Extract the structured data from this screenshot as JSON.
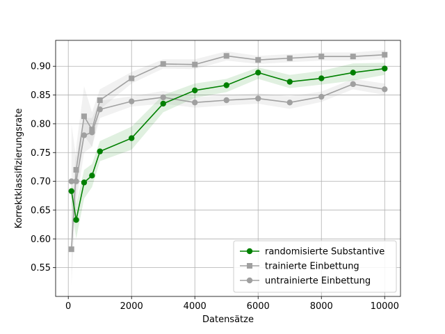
{
  "chart_data": {
    "type": "line",
    "xlabel": "Datensätze",
    "ylabel": "Korrektklassifizierungsrate",
    "xlim": [
      -400,
      10500
    ],
    "ylim": [
      0.5,
      0.945
    ],
    "xticks": [
      0,
      2000,
      4000,
      6000,
      8000,
      10000
    ],
    "xtick_labels": [
      "0",
      "2000",
      "4000",
      "6000",
      "8000",
      "10000"
    ],
    "yticks": [
      0.55,
      0.6,
      0.65,
      0.7,
      0.75,
      0.8,
      0.85,
      0.9
    ],
    "ytick_labels": [
      "0.55",
      "0.60",
      "0.65",
      "0.70",
      "0.75",
      "0.80",
      "0.85",
      "0.90"
    ],
    "grid": true,
    "legend_position": "lower-right",
    "series": [
      {
        "name": "randomisierte Substantive",
        "color": "#008000",
        "marker": "circle",
        "x": [
          100,
          250,
          500,
          750,
          1000,
          2000,
          3000,
          4000,
          5000,
          6000,
          7000,
          8000,
          9000,
          10000
        ],
        "y": [
          0.683,
          0.633,
          0.698,
          0.71,
          0.752,
          0.775,
          0.835,
          0.858,
          0.867,
          0.889,
          0.873,
          0.879,
          0.889,
          0.896
        ],
        "lower": [
          0.66,
          0.6,
          0.67,
          0.69,
          0.735,
          0.755,
          0.82,
          0.845,
          0.855,
          0.878,
          0.862,
          0.868,
          0.875,
          0.885
        ],
        "upper": [
          0.7,
          0.66,
          0.72,
          0.73,
          0.77,
          0.795,
          0.85,
          0.87,
          0.878,
          0.898,
          0.885,
          0.892,
          0.905,
          0.906
        ]
      },
      {
        "name": "trainierte Einbettung",
        "color": "#a0a0a0",
        "marker": "square",
        "x": [
          100,
          250,
          500,
          750,
          1000,
          2000,
          3000,
          4000,
          5000,
          6000,
          7000,
          8000,
          9000,
          10000
        ],
        "y": [
          0.582,
          0.72,
          0.813,
          0.79,
          0.841,
          0.879,
          0.904,
          0.903,
          0.918,
          0.911,
          0.914,
          0.917,
          0.917,
          0.92
        ],
        "lower": [
          0.52,
          0.68,
          0.78,
          0.76,
          0.825,
          0.87,
          0.896,
          0.895,
          0.91,
          0.904,
          0.907,
          0.91,
          0.91,
          0.912
        ],
        "upper": [
          0.64,
          0.76,
          0.865,
          0.82,
          0.86,
          0.89,
          0.912,
          0.912,
          0.926,
          0.918,
          0.921,
          0.924,
          0.924,
          0.928
        ]
      },
      {
        "name": "untrainierte Einbettung",
        "color": "#a0a0a0",
        "marker": "circle",
        "x": [
          100,
          250,
          500,
          750,
          1000,
          2000,
          3000,
          4000,
          5000,
          6000,
          7000,
          8000,
          9000,
          10000
        ],
        "y": [
          0.7,
          0.7,
          0.78,
          0.785,
          0.825,
          0.839,
          0.846,
          0.837,
          0.841,
          0.844,
          0.837,
          0.847,
          0.869,
          0.86
        ],
        "lower": [
          0.6,
          0.66,
          0.75,
          0.76,
          0.81,
          0.83,
          0.835,
          0.828,
          0.832,
          0.835,
          0.826,
          0.838,
          0.86,
          0.85
        ],
        "upper": [
          0.8,
          0.74,
          0.81,
          0.81,
          0.84,
          0.848,
          0.857,
          0.846,
          0.85,
          0.853,
          0.848,
          0.856,
          0.878,
          0.87
        ]
      }
    ]
  }
}
